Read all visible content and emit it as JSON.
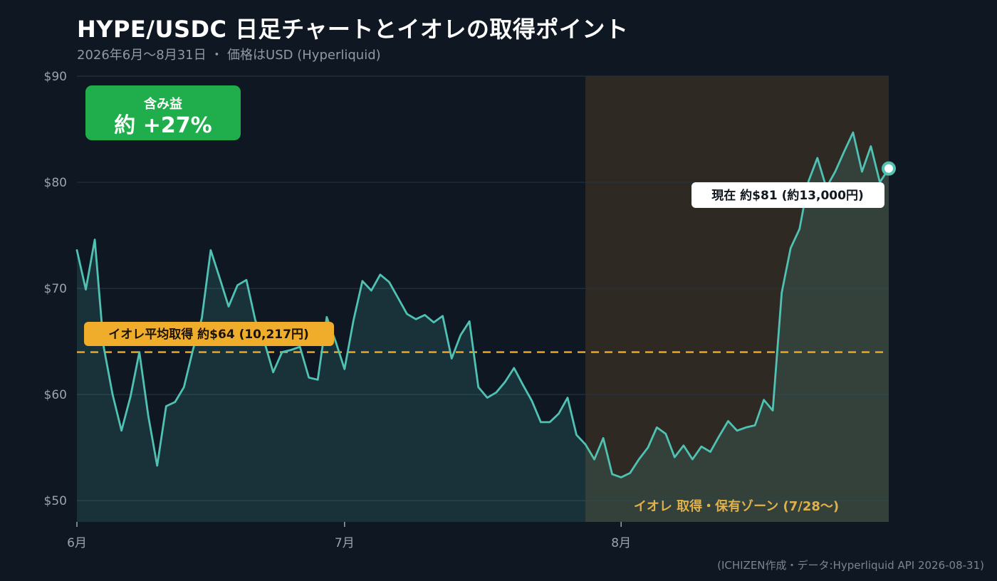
{
  "header": {
    "title": "HYPE/USDC 日足チャートとイオレの取得ポイント",
    "subtitle": "2026年6月〜8月31日 ・ 価格はUSD (Hyperliquid)"
  },
  "footer": {
    "source": "(ICHIZEN作成・データ:Hyperliquid API 2026-08-31)"
  },
  "badge": {
    "label": "含み益",
    "value": "約 +27%",
    "color": "#1fae4b"
  },
  "colors": {
    "line": "#4fc2b3",
    "fill": "#1d3e41",
    "zone": "#2e2923",
    "avg": "#f0ad2b",
    "grid": "#253140"
  },
  "chart_data": {
    "type": "line",
    "title": "HYPE/USDC 日足チャートとイオレの取得ポイント",
    "subtitle": "2026年6月〜8月31日 ・ 価格はUSD (Hyperliquid)",
    "y_unit": "USD",
    "ylim": [
      48,
      90
    ],
    "y_ticks": [
      50,
      60,
      70,
      80,
      90
    ],
    "y_tick_labels": [
      "$50",
      "$60",
      "$70",
      "$80",
      "$90"
    ],
    "x_start": "2026-06-01",
    "x_end": "2026-08-31",
    "x_ticks": [
      {
        "date": "2026-06-01",
        "label": "6月"
      },
      {
        "date": "2026-07-01",
        "label": "7月"
      },
      {
        "date": "2026-08-01",
        "label": "8月"
      }
    ],
    "grid": true,
    "series": [
      {
        "values": [
          73.6,
          69.9,
          74.6,
          64.5,
          60.0,
          56.6,
          59.8,
          64.0,
          58.0,
          53.3,
          58.9,
          59.3,
          60.7,
          64.2,
          67.2,
          73.6,
          71.0,
          68.3,
          70.3,
          70.8,
          67.0,
          65.0,
          62.1,
          64.0,
          64.2,
          64.5,
          61.6,
          61.4,
          67.3,
          65.0,
          62.4,
          67.0,
          70.7,
          69.8,
          71.3,
          70.6,
          69.1,
          67.6,
          67.1,
          67.5,
          66.8,
          67.4,
          63.4,
          65.6,
          66.9,
          60.7,
          59.7,
          60.2,
          61.2,
          62.5,
          60.9,
          59.4,
          57.4,
          57.4,
          58.2,
          59.7,
          56.2,
          55.3,
          53.9,
          55.9,
          52.5,
          52.2,
          52.6,
          53.9,
          55.0,
          56.9,
          56.3,
          54.1,
          55.2,
          53.9,
          55.1,
          54.6,
          56.1,
          57.5,
          56.6,
          56.9,
          57.1,
          59.5,
          58.5,
          69.6,
          73.8,
          75.6,
          80.1,
          82.3,
          79.5,
          81.0,
          82.9,
          84.7,
          81.0,
          83.4,
          80.0,
          81.3
        ]
      }
    ],
    "average_cost": {
      "value": 64,
      "label": "イオレ平均取得 約$64 (10,217円)"
    },
    "current": {
      "value": 81.3,
      "label": "現在 約$81 (約13,000円)"
    },
    "zone": {
      "start": "2026-07-28",
      "end": "2026-08-31",
      "label": "イオレ 取得・保有ゾーン (7/28〜)"
    }
  }
}
